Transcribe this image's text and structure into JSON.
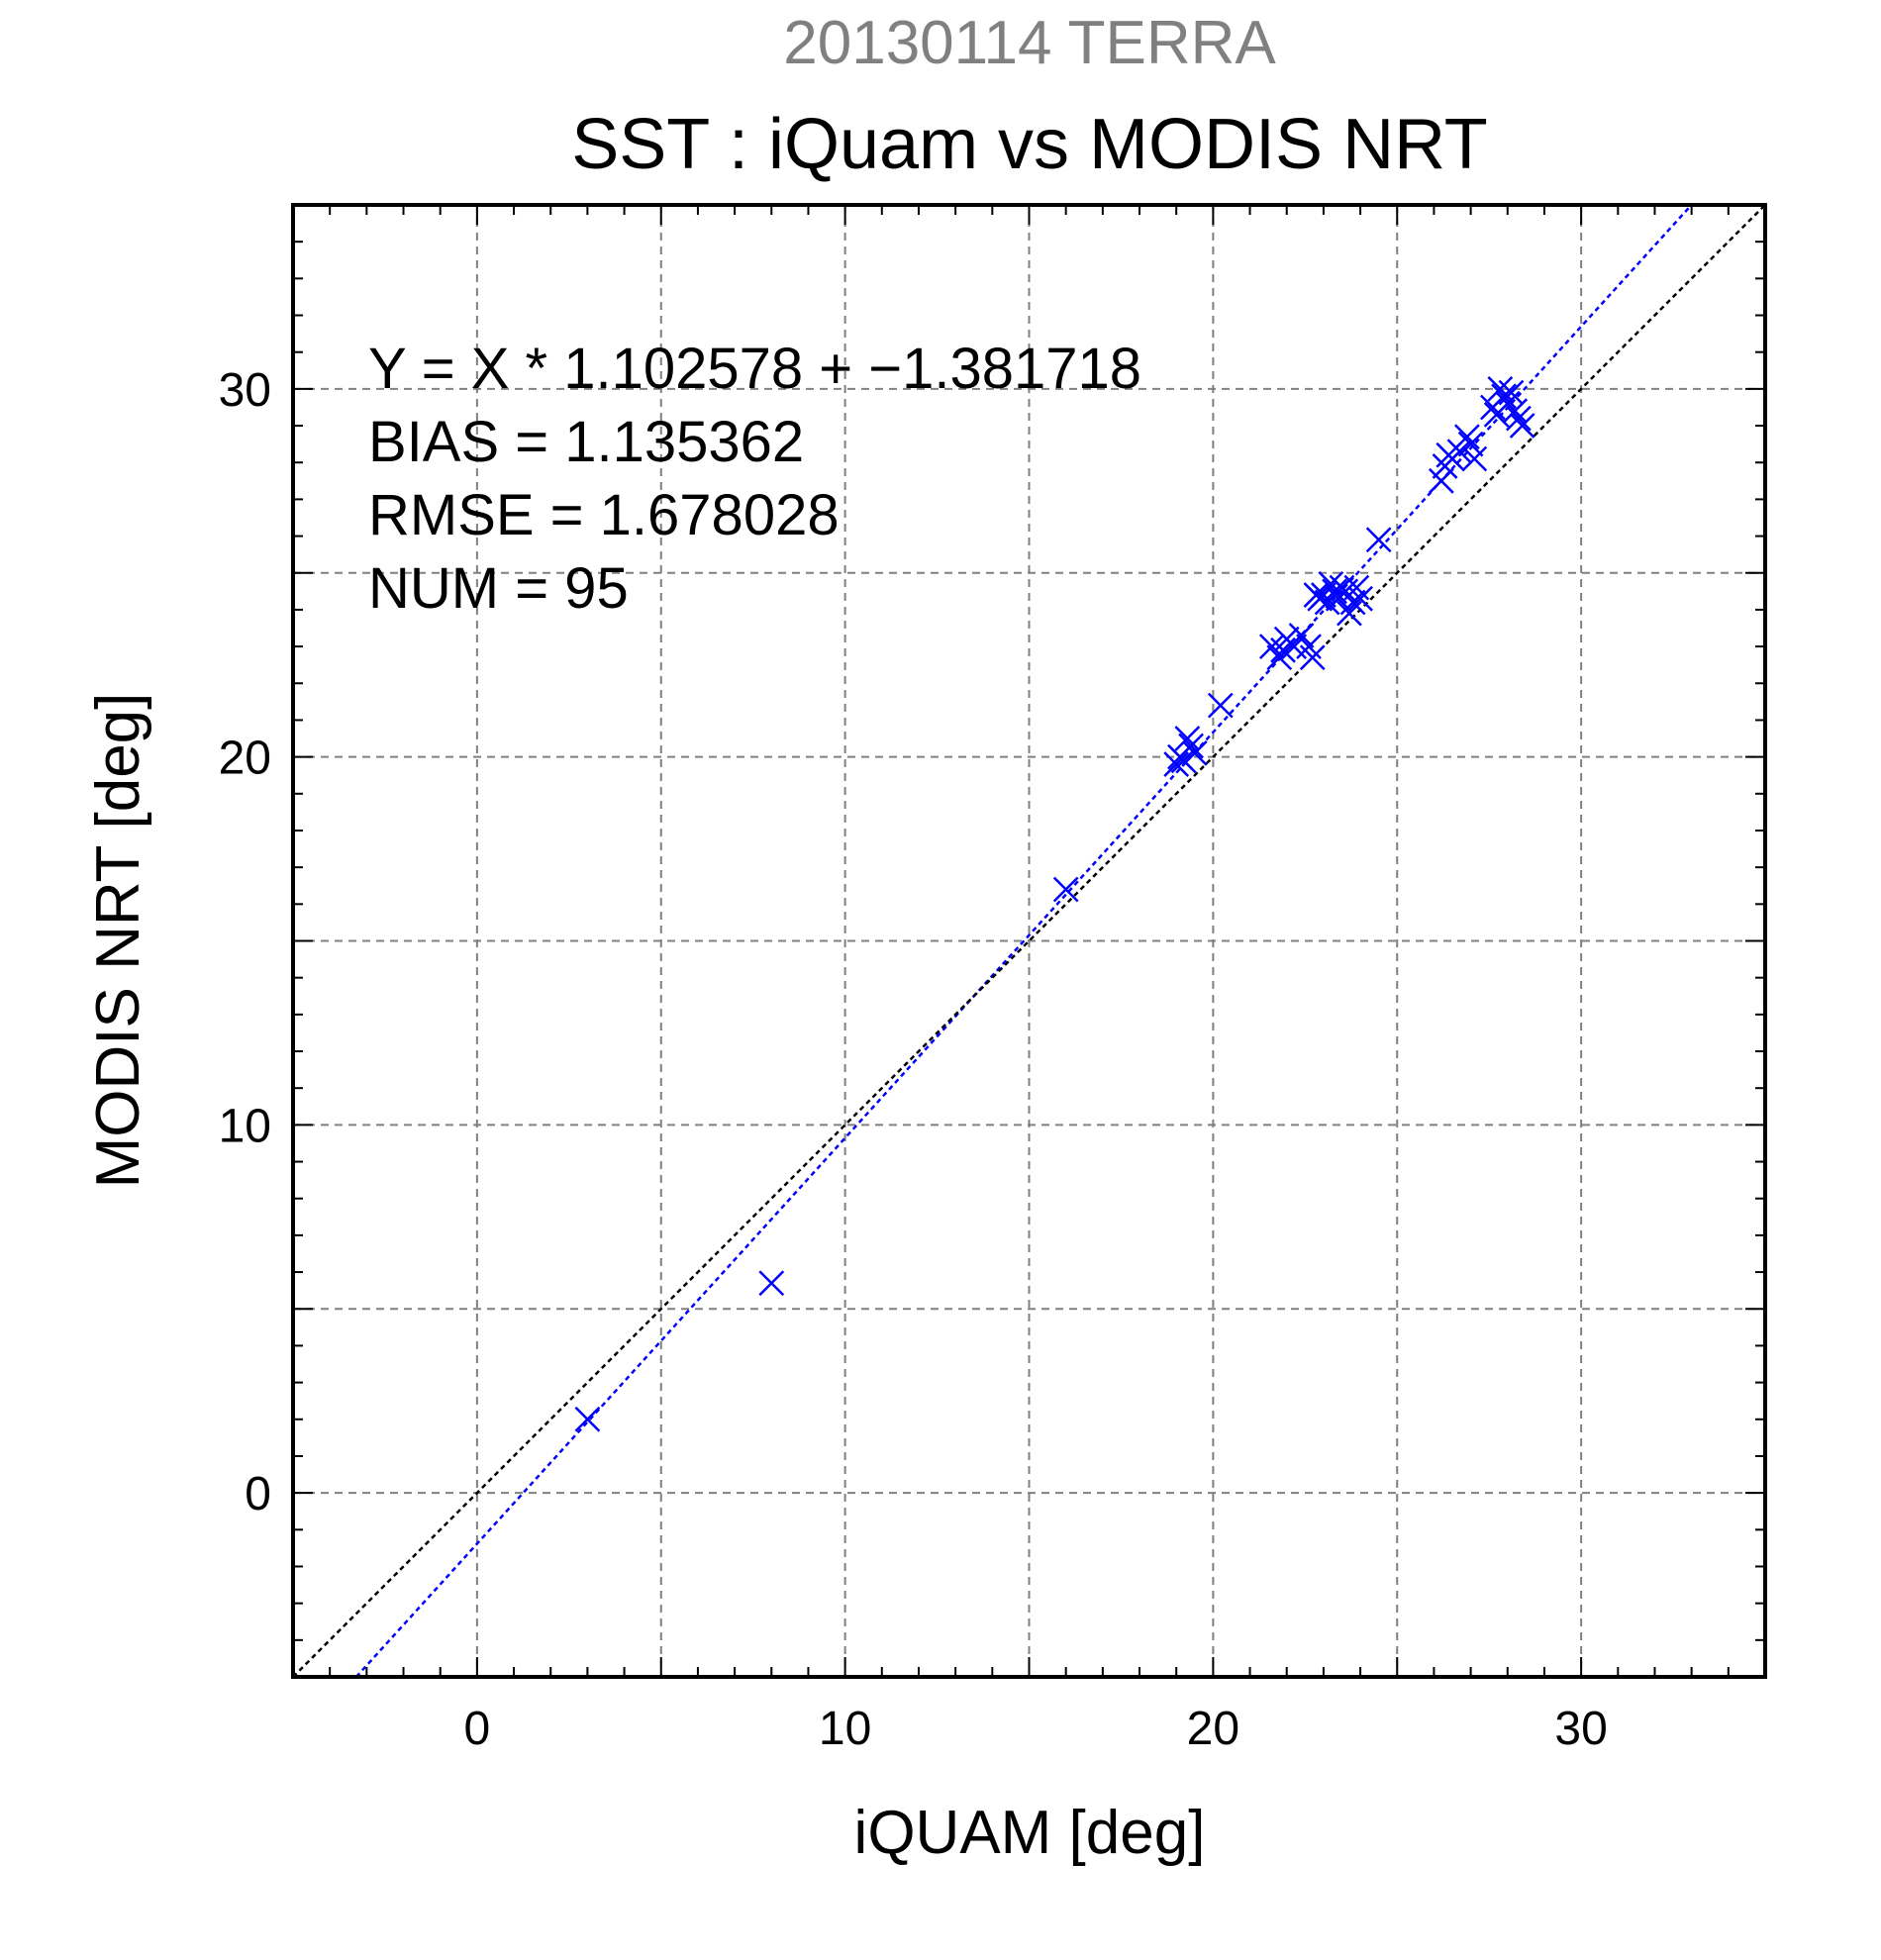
{
  "header": {
    "suptitle": "20130114 TERRA",
    "title": "SST : iQuam vs MODIS NRT"
  },
  "stats": {
    "fit": "Y = X * 1.102578 + −1.381718",
    "bias": "BIAS = 1.135362",
    "rmse": "RMSE = 1.678028",
    "num": "NUM = 95"
  },
  "colors": {
    "points": "#0000ff",
    "fit_line": "#0000ff",
    "one_to_one": "#000000",
    "grid": "#808080",
    "suptitle": "#808080"
  },
  "chart_data": {
    "type": "scatter",
    "title": "SST : iQuam vs MODIS NRT",
    "xlabel": "iQUAM [deg]",
    "ylabel": "MODIS NRT [deg]",
    "xlim": [
      -5,
      35
    ],
    "ylim": [
      -5,
      35
    ],
    "xticks": [
      0,
      10,
      20,
      30
    ],
    "yticks": [
      0,
      10,
      20,
      30
    ],
    "grid": true,
    "series": [
      {
        "marker": "x",
        "x": [
          3.0,
          8.0,
          16.0,
          19.0,
          19.1,
          19.2,
          19.3,
          19.4,
          19.5,
          20.2,
          21.6,
          21.8,
          21.9,
          22.0,
          22.2,
          22.4,
          22.6,
          22.7,
          22.8,
          22.9,
          23.0,
          23.1,
          23.2,
          23.3,
          23.4,
          23.5,
          23.6,
          23.7,
          23.8,
          23.9,
          24.0,
          24.5,
          26.2,
          26.3,
          26.4,
          26.5,
          26.7,
          26.9,
          27.0,
          27.1,
          27.6,
          27.7,
          27.8,
          27.9,
          28.0,
          28.1,
          28.2,
          28.3,
          28.4
        ],
        "y": [
          2.0,
          5.7,
          16.4,
          19.8,
          20.0,
          19.9,
          20.5,
          20.3,
          20.1,
          21.4,
          23.0,
          22.7,
          22.9,
          23.2,
          23.0,
          23.3,
          23.0,
          22.7,
          24.4,
          24.3,
          24.4,
          24.2,
          24.7,
          24.5,
          24.3,
          24.6,
          24.5,
          23.9,
          24.2,
          24.6,
          24.3,
          25.9,
          27.5,
          27.9,
          28.2,
          28.1,
          28.3,
          28.7,
          28.5,
          28.1,
          29.5,
          29.3,
          30.0,
          29.8,
          29.6,
          29.9,
          29.4,
          29.2,
          29.0
        ]
      }
    ],
    "lines": [
      {
        "kind": "fit",
        "slope": 1.102578,
        "intercept": -1.381718
      },
      {
        "kind": "one_to_one",
        "slope": 1,
        "intercept": 0
      }
    ]
  }
}
